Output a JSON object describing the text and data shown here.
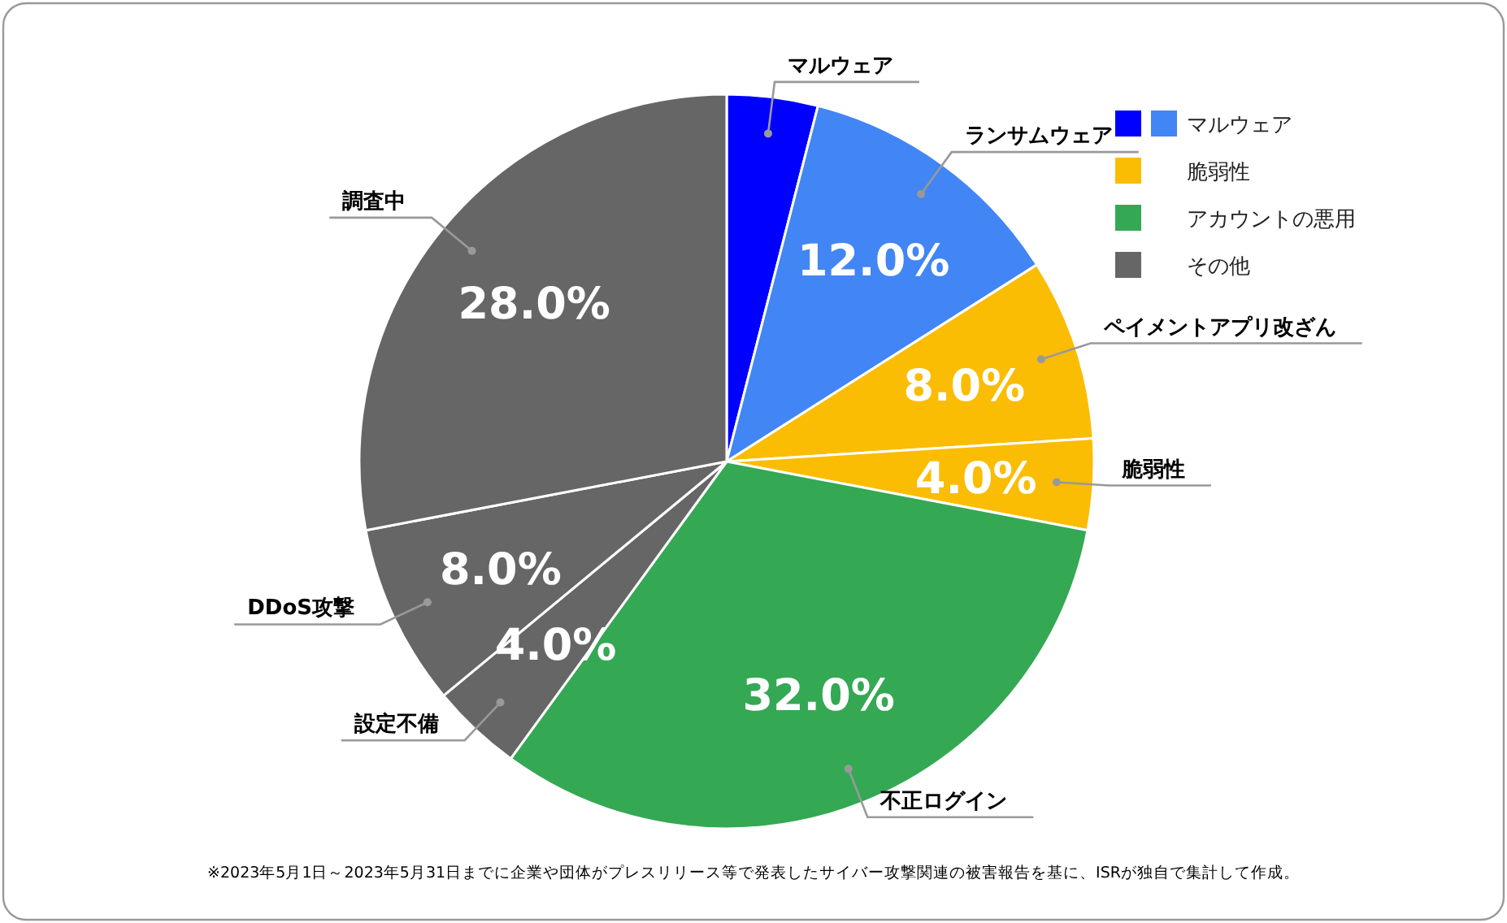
{
  "chart_data": {
    "type": "pie",
    "categories": [
      "マルウェア",
      "ランサムウェア",
      "ペイメントアプリ改ざん",
      "脆弱性",
      "不正ログイン",
      "設定不備",
      "DDoS攻撃",
      "調査中"
    ],
    "values": [
      4,
      12,
      8,
      4,
      32,
      4,
      8,
      28
    ],
    "value_labels": [
      null,
      "12.0%",
      "8.0%",
      "4.0%",
      "32.0%",
      "4.0%",
      "8.0%",
      "28.0%"
    ],
    "colors": [
      "#0000ff",
      "#4285f4",
      "#fbbc04",
      "#fbbc04",
      "#34a853",
      "#666666",
      "#666666",
      "#666666"
    ],
    "annotations": [
      "マルウェア",
      "脆弱性",
      "アカウントの悪用",
      "その他",
      "※2023年5月1日～2023年5月31日までに企業や団体がプレスリリース等で発表したサイバー攻撃関連の被害報告を基に、ISRが独自で集計して作成。"
    ]
  }
}
